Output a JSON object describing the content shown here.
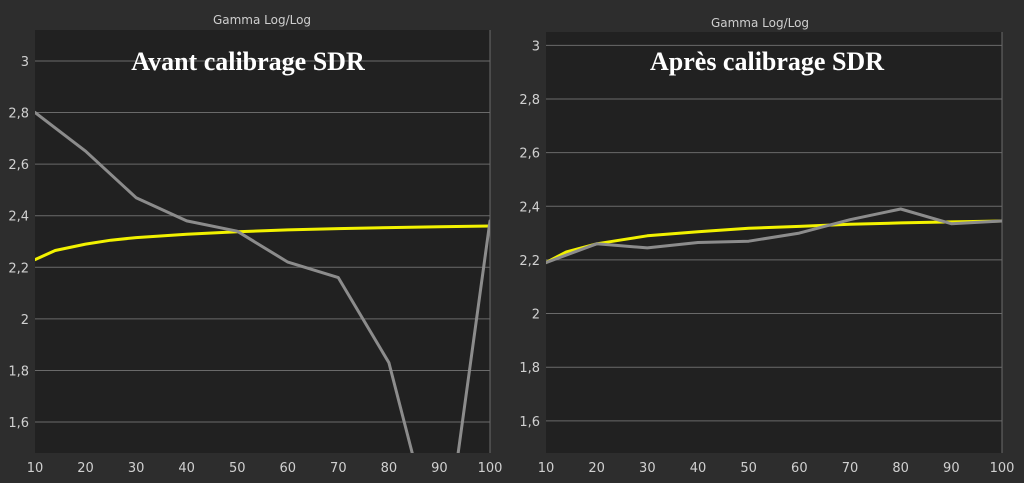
{
  "chart_data": [
    {
      "type": "line",
      "title": "Gamma Log/Log",
      "overlay_text": "Avant calibrage SDR",
      "xlabel": "",
      "ylabel": "",
      "xlim": [
        10,
        100
      ],
      "ylim": [
        1.48,
        3.12
      ],
      "x_ticks": [
        "10",
        "20",
        "30",
        "40",
        "50",
        "60",
        "70",
        "80",
        "90",
        "100"
      ],
      "y_ticks": [
        "1,6",
        "1,8",
        "2",
        "2,2",
        "2,4",
        "2,6",
        "2,8",
        "3"
      ],
      "grid": true,
      "series": [
        {
          "color": "#f2f200",
          "x": [
            10,
            14,
            20,
            25,
            30,
            40,
            50,
            60,
            70,
            80,
            90,
            100
          ],
          "values": [
            2.23,
            2.265,
            2.29,
            2.305,
            2.315,
            2.328,
            2.338,
            2.345,
            2.35,
            2.354,
            2.357,
            2.36
          ]
        },
        {
          "color": "#8c8c8c",
          "x": [
            10,
            20,
            30,
            40,
            50,
            60,
            70,
            80,
            85,
            93.5,
            100
          ],
          "values": [
            2.8,
            2.65,
            2.47,
            2.38,
            2.34,
            2.22,
            2.16,
            1.83,
            1.45,
            1.45,
            2.38
          ]
        }
      ]
    },
    {
      "type": "line",
      "title": "Gamma Log/Log",
      "overlay_text": "Après calibrage SDR",
      "xlabel": "",
      "ylabel": "",
      "xlim": [
        10,
        100
      ],
      "ylim": [
        1.48,
        3.05
      ],
      "x_ticks": [
        "10",
        "20",
        "30",
        "40",
        "50",
        "60",
        "70",
        "80",
        "90",
        "100"
      ],
      "y_ticks": [
        "1,6",
        "1,8",
        "2",
        "2,2",
        "2,4",
        "2,6",
        "2,8",
        "3"
      ],
      "grid": true,
      "series": [
        {
          "color": "#f2f200",
          "x": [
            10,
            14,
            20,
            25,
            30,
            40,
            50,
            60,
            70,
            80,
            90,
            100
          ],
          "values": [
            2.19,
            2.23,
            2.26,
            2.275,
            2.29,
            2.305,
            2.318,
            2.325,
            2.333,
            2.338,
            2.342,
            2.345
          ]
        },
        {
          "color": "#8c8c8c",
          "x": [
            10,
            20,
            30,
            40,
            50,
            60,
            70,
            80,
            90,
            100
          ],
          "values": [
            2.19,
            2.26,
            2.245,
            2.265,
            2.27,
            2.3,
            2.35,
            2.39,
            2.335,
            2.345
          ]
        }
      ]
    }
  ]
}
